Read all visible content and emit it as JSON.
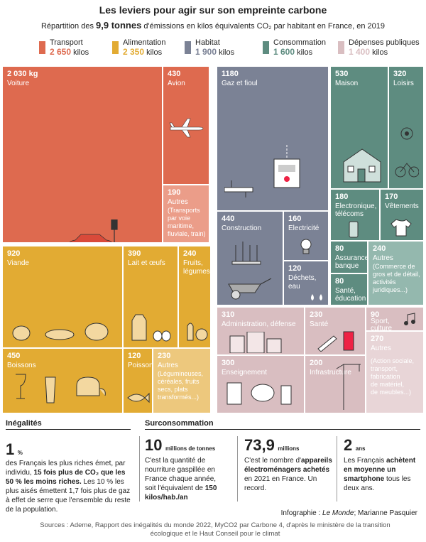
{
  "header": {
    "title": "Les leviers pour agir sur son empreinte carbone",
    "subtitle_pre": "Répartition des",
    "subtitle_bold": "9,9 tonnes",
    "subtitle_post": "d'émissions en kilos équivalents CO₂ par habitant en France, en 2019"
  },
  "colors": {
    "transport": "#de6a4f",
    "alimentation": "#e2ab33",
    "habitat": "#7b8295",
    "consommation": "#5e8c80",
    "depenses": "#d9bec1",
    "transport_light": "#eb9d89",
    "aliment_light": "#edc87d",
    "habitat_light": "#a8adba",
    "conso_light": "#94b8ae",
    "dep_light": "#e8d5d7"
  },
  "legend": [
    {
      "name": "Transport",
      "value": "2 650",
      "unit": "kilos",
      "color": "#de6a4f"
    },
    {
      "name": "Alimentation",
      "value": "2 350",
      "unit": "kilos",
      "color": "#e2ab33"
    },
    {
      "name": "Habitat",
      "value": "1 900",
      "unit": "kilos",
      "color": "#7b8295"
    },
    {
      "name": "Consommation",
      "value": "1 600",
      "unit": "kilos",
      "color": "#5e8c80"
    },
    {
      "name": "Dépenses publiques",
      "value": "1 400",
      "unit": "kilos",
      "color": "#d9bec1"
    }
  ],
  "tiles": {
    "voiture": {
      "n": "2 030 kg",
      "l": "Voiture"
    },
    "avion": {
      "n": "430",
      "l": "Avion"
    },
    "transport_autres": {
      "n": "190",
      "l": "Autres",
      "d": [
        "(Transports",
        "par voie",
        "maritime,",
        "fluviale, train)"
      ]
    },
    "gaz": {
      "n": "1180",
      "l": "Gaz et fioul"
    },
    "construction": {
      "n": "440",
      "l": "Construction"
    },
    "electricite": {
      "n": "160",
      "l": "Electricité"
    },
    "dechets": {
      "n": "120",
      "l": "Déchets,",
      "l2": "eau"
    },
    "maison": {
      "n": "530",
      "l": "Maison"
    },
    "loisirs": {
      "n": "320",
      "l": "Loisirs"
    },
    "electronique": {
      "n": "180",
      "l": "Electronique,",
      "l2": "télécoms"
    },
    "vetements": {
      "n": "170",
      "l": "Vêtements"
    },
    "assurance": {
      "n": "80",
      "l": "Assurance,",
      "l2": "banque"
    },
    "sante_edu": {
      "n": "80",
      "l": "Santé,",
      "l2": "éducation"
    },
    "conso_autres": {
      "n": "240",
      "l": "Autres",
      "d": [
        "(Commerce de",
        "gros et de détail,",
        "activités",
        "juridiques...)"
      ]
    },
    "viande": {
      "n": "920",
      "l": "Viande"
    },
    "lait": {
      "n": "390",
      "l": "Lait et œufs"
    },
    "fruits": {
      "n": "240",
      "l": "Fruits,",
      "l2": "légumes"
    },
    "boissons": {
      "n": "450",
      "l": "Boissons"
    },
    "poisson": {
      "n": "120",
      "l": "Poisson"
    },
    "alim_autres": {
      "n": "230",
      "l": "Autres",
      "d": [
        "(Légumineuses,",
        "céréales, fruits",
        "secs, plats",
        "transformés...)"
      ]
    },
    "admin": {
      "n": "310",
      "l": "Administration, défense"
    },
    "sante": {
      "n": "230",
      "l": "Santé"
    },
    "sport": {
      "n": "90",
      "l": "Sport,",
      "l2": "culture"
    },
    "enseignement": {
      "n": "300",
      "l": "Enseignement"
    },
    "infra": {
      "n": "200",
      "l": "Infrastructure"
    },
    "dep_autres": {
      "n": "270",
      "l": "Autres",
      "d": [
        "(Action sociale,",
        "transport,",
        "fabrication",
        "de matériel,",
        "de meubles...)"
      ]
    }
  },
  "inegalites": {
    "heading": "Inégalités",
    "big": "1",
    "unit": "%",
    "t1": "des Français les plus riches émet, par individu,",
    "b1": "15 fois plus de CO₂ que les 50 % les moins riches.",
    "t2": "Les 10 % les plus aisés émettent 1,7 fois plus de gaz à effet de serre que l'ensemble du reste de la population."
  },
  "surconso": {
    "heading": "Surconsommation",
    "items": [
      {
        "big": "10",
        "unit": "millions de tonnes",
        "t1": "C'est la quantité de nourriture gaspillée en France chaque année, soit l'équivalent de",
        "b1": "150 kilos/hab./an"
      },
      {
        "big": "73,9",
        "unit": "millions",
        "t1": "C'est le nombre d'",
        "b1": "appareils électroménagers achetés",
        "t2": "en 2021 en France. Un record."
      },
      {
        "big": "2",
        "unit": "ans",
        "t1": "Les Français",
        "b1": "achètent en moyenne un smartphone",
        "t2": "tous les deux ans."
      }
    ]
  },
  "credit_pre": "Infographie :",
  "credit_italic": "Le Monde",
  "credit_post": "; Marianne Pasquier",
  "sources": [
    "Sources : Ademe, Rapport des inégalités du monde 2022, MyCO2 par Carbone 4, d'après le ministère de la transition",
    "écologique et le Haut Conseil pour le climat"
  ]
}
